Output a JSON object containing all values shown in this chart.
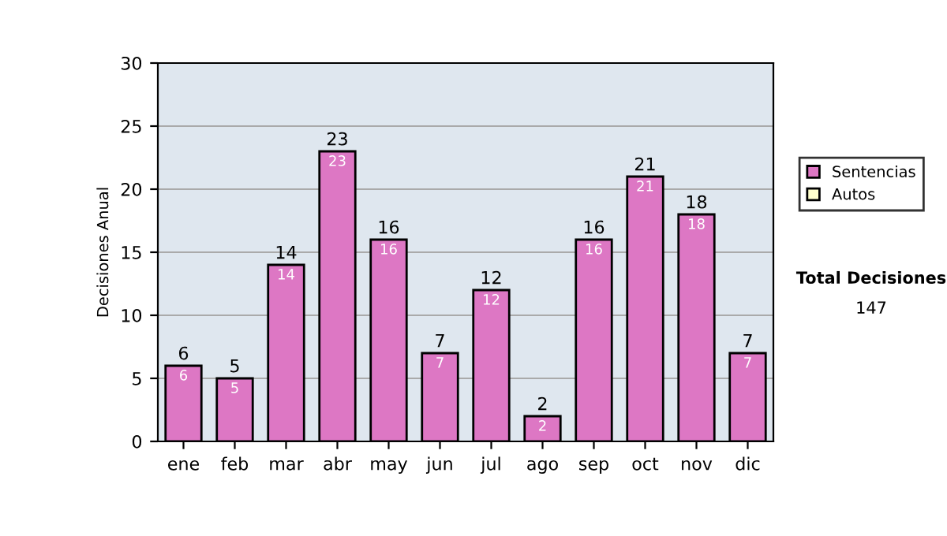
{
  "chart_data": {
    "type": "bar",
    "ylabel": "Decisiones Anual",
    "categories": [
      "ene",
      "feb",
      "mar",
      "abr",
      "may",
      "jun",
      "jul",
      "ago",
      "sep",
      "oct",
      "nov",
      "dic"
    ],
    "stacked": true,
    "series": [
      {
        "name": "Sentencias",
        "color": "#dd77c4",
        "values": [
          6,
          5,
          14,
          23,
          16,
          7,
          12,
          2,
          16,
          21,
          18,
          7
        ],
        "value_labels": [
          "6",
          "5",
          "14",
          "23",
          "16",
          "7",
          "12",
          "2",
          "16",
          "21",
          "18",
          "7"
        ]
      },
      {
        "name": "Autos",
        "color": "#ffffcc",
        "values": [
          null,
          null,
          null,
          null,
          null,
          null,
          null,
          null,
          null,
          null,
          null,
          null
        ]
      }
    ],
    "totals": [
      "6",
      "5",
      "14",
      "23",
      "16",
      "7",
      "12",
      "2",
      "16",
      "21",
      "18",
      "7"
    ],
    "ylim": [
      0,
      30
    ],
    "yticks": [
      0,
      5,
      10,
      15,
      20,
      25,
      30
    ],
    "grid": "y",
    "legend": "right",
    "annotations": [
      "Total Decisiones",
      "147"
    ]
  }
}
